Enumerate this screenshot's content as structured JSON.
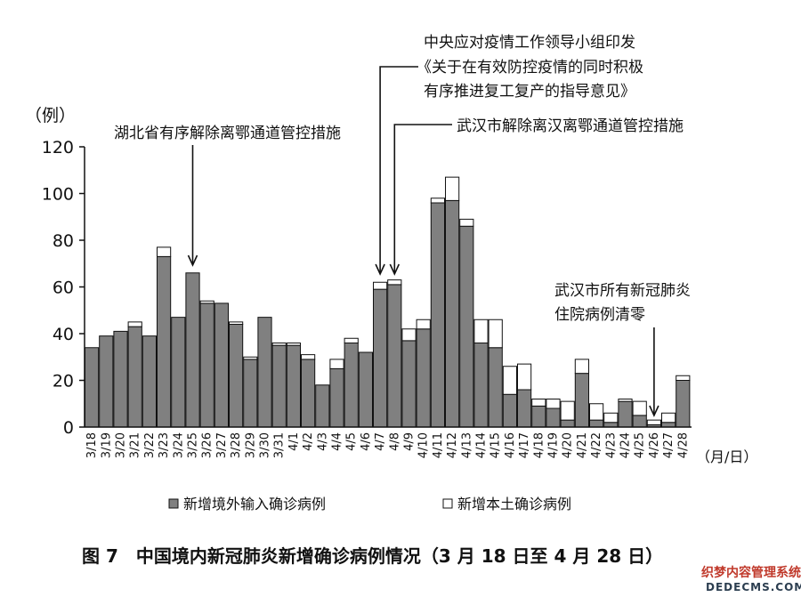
{
  "chart_data": {
    "type": "bar",
    "stacked": true,
    "title": "图 7　中国境内新冠肺炎新增确诊病例情况（3 月 18 日至 4 月 28 日）",
    "ylabel": "（例）",
    "xlabel": "（月/日）",
    "ylim": [
      0,
      120
    ],
    "yticks": [
      0,
      20,
      40,
      60,
      80,
      100,
      120
    ],
    "grid": false,
    "legend_placement": "bottom",
    "categories": [
      "3/18",
      "3/19",
      "3/20",
      "3/21",
      "3/22",
      "3/23",
      "3/24",
      "3/25",
      "3/26",
      "3/27",
      "3/28",
      "3/29",
      "3/30",
      "3/31",
      "4/1",
      "4/2",
      "4/3",
      "4/4",
      "4/5",
      "4/6",
      "4/7",
      "4/8",
      "4/9",
      "4/10",
      "4/11",
      "4/12",
      "4/13",
      "4/14",
      "4/15",
      "4/16",
      "4/17",
      "4/18",
      "4/19",
      "4/20",
      "4/21",
      "4/22",
      "4/23",
      "4/24",
      "4/25",
      "4/26",
      "4/27",
      "4/28"
    ],
    "series": [
      {
        "name": "新增境外输入确诊病例",
        "color": "#808080",
        "values": [
          34,
          39,
          41,
          43,
          39,
          73,
          47,
          66,
          53,
          53,
          44,
          29,
          47,
          35,
          35,
          29,
          18,
          25,
          36,
          32,
          59,
          61,
          37,
          42,
          96,
          97,
          86,
          36,
          34,
          14,
          16,
          9,
          8,
          3,
          23,
          3,
          2,
          11,
          5,
          1,
          2,
          20
        ]
      },
      {
        "name": "新增本土确诊病例",
        "color": "#ffffff",
        "values": [
          0,
          0,
          0,
          2,
          0,
          4,
          0,
          0,
          1,
          0,
          1,
          1,
          0,
          1,
          1,
          2,
          0,
          4,
          2,
          0,
          3,
          2,
          5,
          4,
          2,
          10,
          3,
          10,
          12,
          12,
          11,
          3,
          4,
          8,
          6,
          7,
          4,
          1,
          6,
          2,
          4,
          2
        ]
      }
    ],
    "annotations": [
      {
        "text": "湖北省有序解除离鄂通道管控措施",
        "target": "3/25"
      },
      {
        "text": [
          "中央应对疫情工作领导小组印发",
          "《关于在有效防控疫情的同时积极",
          "有序推进复工复产的指导意见》"
        ],
        "target": "4/7"
      },
      {
        "text": "武汉市解除离汉离鄂通道管控措施",
        "target": "4/8"
      },
      {
        "text": [
          "武汉市所有新冠肺炎",
          "住院病例清零"
        ],
        "target": "4/26"
      }
    ]
  },
  "watermark": {
    "line1": "织梦内容管理系统",
    "line2": "DEDECMS.COM"
  }
}
